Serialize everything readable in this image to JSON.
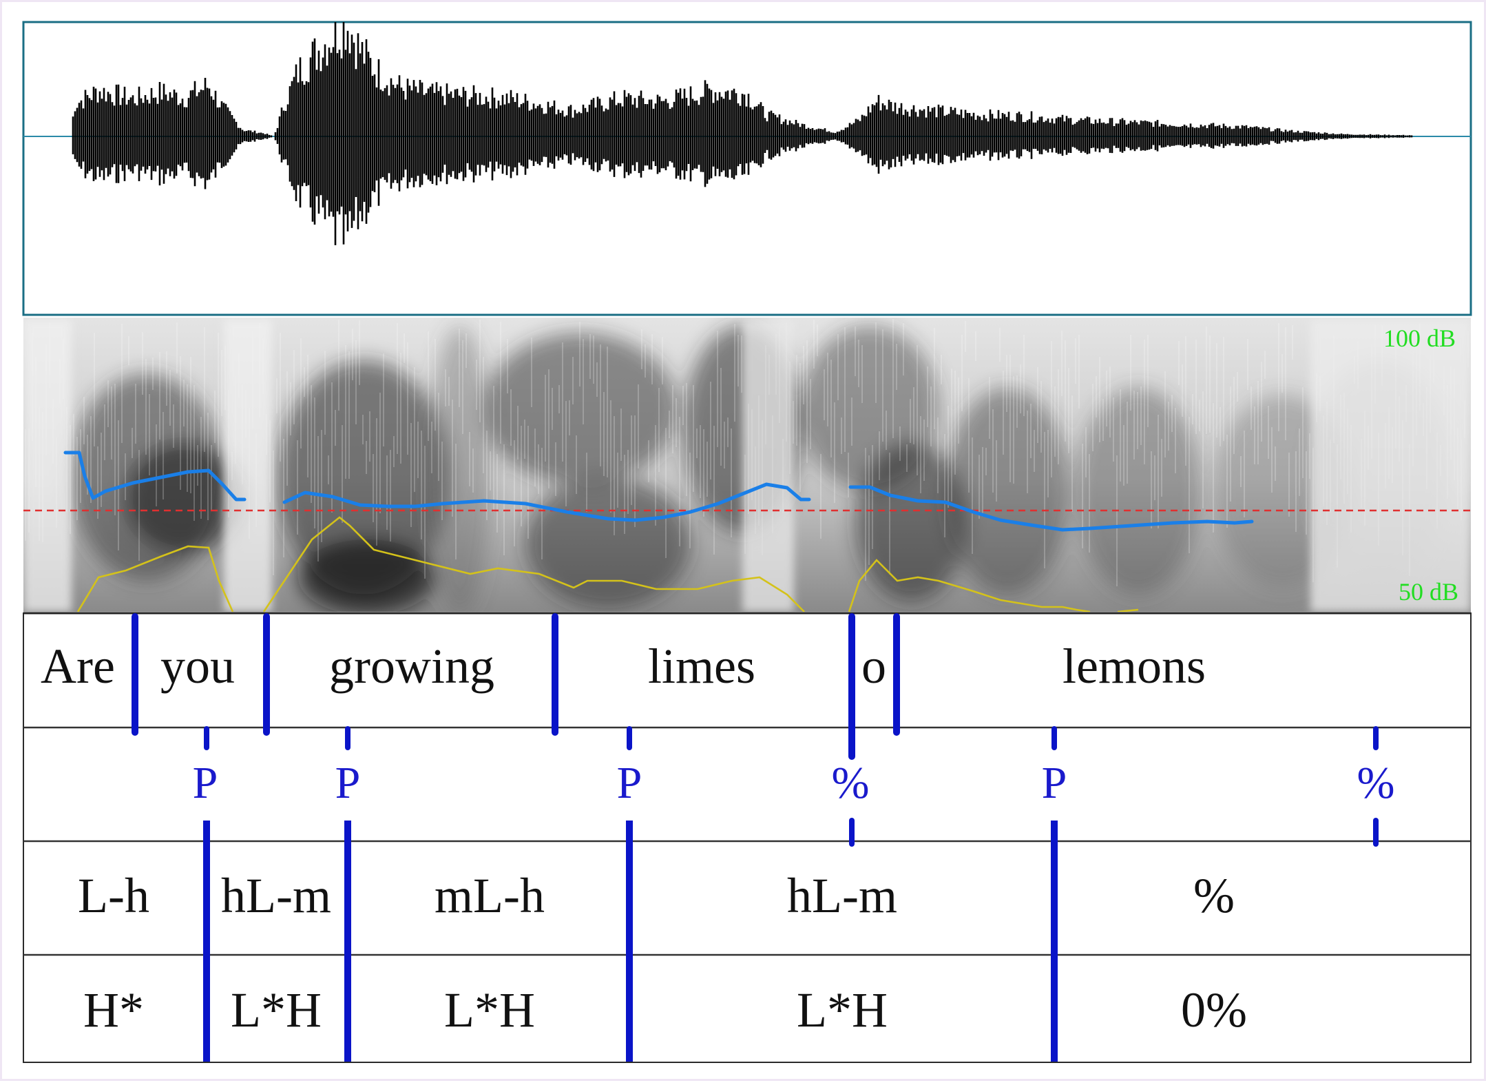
{
  "spectrogram": {
    "db_top_label": "100 dB",
    "db_bottom_label": "50 dB"
  },
  "colors": {
    "pitch_contour": "#1a7fe8",
    "intensity_contour": "#d4c21a",
    "reference_line": "#e03030",
    "boundary": "#0a14c8",
    "db_labels": "#22dd22"
  },
  "tiers": {
    "words": [
      "Are",
      "you",
      "growing",
      "limes",
      "o",
      "lemons"
    ],
    "prominence": [
      "P",
      "P",
      "P",
      "%",
      "P",
      "%"
    ],
    "contour": [
      "L-h",
      "hL-m",
      "mL-h",
      "hL-m",
      "%"
    ],
    "tones": [
      "H*",
      "L*H",
      "L*H",
      "L*H",
      "0%"
    ]
  }
}
